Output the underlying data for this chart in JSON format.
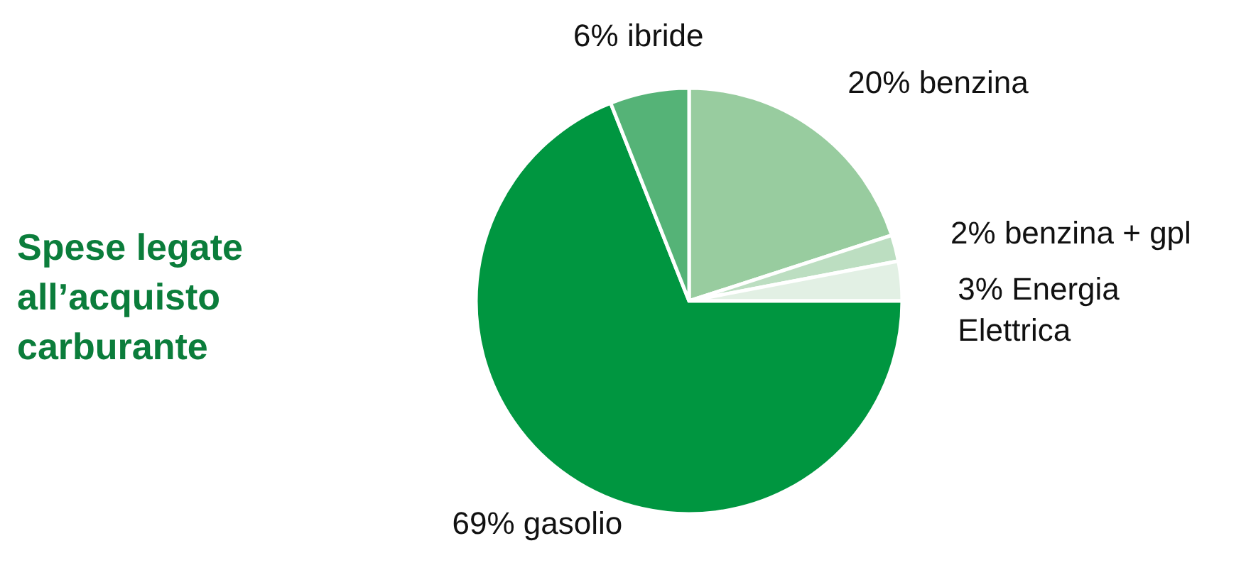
{
  "chart_data": {
    "type": "pie",
    "title": "Spese legate all’acquisto carburante",
    "categories": [
      "benzina",
      "benzina + gpl",
      "Energia Elettrica",
      "gasolio",
      "ibride"
    ],
    "values": [
      20,
      2,
      3,
      69,
      6
    ],
    "value_labels": [
      "20%",
      "2%",
      "3%",
      "69%",
      "6%"
    ],
    "colors": [
      "#98cc9f",
      "#bcdec1",
      "#e2f0e4",
      "#009640",
      "#55b377"
    ]
  }
}
